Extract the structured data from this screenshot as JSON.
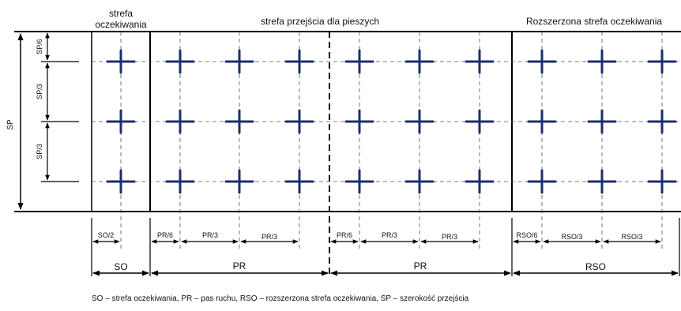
{
  "zones": {
    "waiting_line1": "strefa",
    "waiting_line2": "oczekiwania",
    "crossing": "strefa przejścia dla pieszych",
    "extended": "Rozszerzona strefa oczekiwania"
  },
  "vertical_dims": {
    "total": "SP",
    "sixth": "SP/6",
    "third_a": "SP/3",
    "third_b": "SP/3"
  },
  "detail_dims": {
    "so_half": "SO/2",
    "pr_sixth_a": "PR/6",
    "pr_third_a1": "PR/3",
    "pr_third_a2": "PR/3",
    "pr_sixth_b": "PR/6",
    "pr_third_b1": "PR/3",
    "pr_third_b2": "PR/3",
    "rso_sixth": "RSO/6",
    "rso_third_1": "RSO/3",
    "rso_third_2": "RSO/3"
  },
  "main_dims": {
    "so": "SO",
    "pr_a": "PR",
    "pr_b": "PR",
    "rso": "RSO"
  },
  "legend": "SO – strefa oczekiwania, PR – pas ruchu, RSO – rozszerzona strefa oczekiwania, SP – szerokość przejścia",
  "colors": {
    "marker": "#1b2f6b",
    "line": "#000000"
  }
}
